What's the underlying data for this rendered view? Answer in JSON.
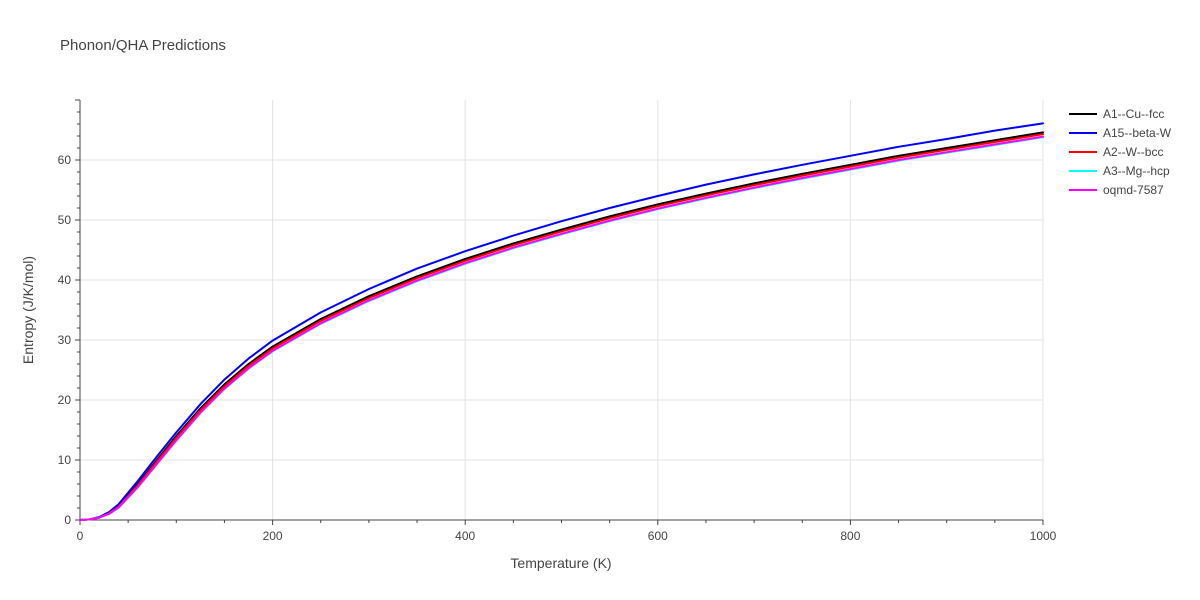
{
  "chart_data": {
    "type": "line",
    "title": "Phonon/QHA Predictions",
    "xlabel": "Temperature (K)",
    "ylabel": "Entropy (J/K/mol)",
    "xlim": [
      0,
      1000
    ],
    "ylim": [
      0,
      70
    ],
    "xticks": [
      0,
      200,
      400,
      600,
      800,
      1000
    ],
    "yticks": [
      0,
      10,
      20,
      30,
      40,
      50,
      60
    ],
    "grid": true,
    "legend_position": "right",
    "series": [
      {
        "name": "A1--Cu--fcc",
        "color": "#000000",
        "x": [
          0,
          10,
          20,
          30,
          40,
          60,
          80,
          100,
          125,
          150,
          175,
          200,
          250,
          300,
          350,
          400,
          450,
          500,
          550,
          600,
          650,
          700,
          750,
          800,
          850,
          900,
          950,
          1000
        ],
        "y": [
          0,
          0.1,
          0.4,
          1.2,
          2.4,
          6.0,
          10.0,
          14.0,
          18.6,
          22.6,
          26.0,
          28.9,
          33.5,
          37.3,
          40.6,
          43.5,
          46.1,
          48.4,
          50.6,
          52.6,
          54.4,
          56.1,
          57.7,
          59.2,
          60.7,
          62.0,
          63.3,
          64.6
        ]
      },
      {
        "name": "A15--beta-W",
        "color": "#0000ff",
        "x": [
          0,
          10,
          20,
          30,
          40,
          60,
          80,
          100,
          125,
          150,
          175,
          200,
          250,
          300,
          350,
          400,
          450,
          500,
          550,
          600,
          650,
          700,
          750,
          800,
          850,
          900,
          950,
          1000
        ],
        "y": [
          0,
          0.1,
          0.5,
          1.3,
          2.6,
          6.5,
          10.6,
          14.6,
          19.3,
          23.4,
          26.9,
          29.9,
          34.6,
          38.5,
          41.9,
          44.8,
          47.4,
          49.8,
          52.0,
          54.0,
          55.9,
          57.6,
          59.2,
          60.7,
          62.2,
          63.5,
          64.9,
          66.1
        ]
      },
      {
        "name": "A2--W--bcc",
        "color": "#ff0000",
        "x": [
          0,
          10,
          20,
          30,
          40,
          60,
          80,
          100,
          125,
          150,
          175,
          200,
          250,
          300,
          350,
          400,
          450,
          500,
          550,
          600,
          650,
          700,
          750,
          800,
          850,
          900,
          950,
          1000
        ],
        "y": [
          0,
          0.1,
          0.4,
          1.1,
          2.2,
          5.8,
          9.8,
          13.7,
          18.3,
          22.3,
          25.7,
          28.6,
          33.2,
          37.0,
          40.3,
          43.2,
          45.8,
          48.1,
          50.3,
          52.3,
          54.1,
          55.8,
          57.4,
          58.9,
          60.4,
          61.7,
          63.0,
          64.3
        ]
      },
      {
        "name": "A3--Mg--hcp",
        "color": "#00ffff",
        "x": [
          0,
          10,
          20,
          30,
          40,
          60,
          80,
          100,
          125,
          150,
          175,
          200,
          250,
          300,
          350,
          400,
          450,
          500,
          550,
          600,
          650,
          700,
          750,
          800,
          850,
          900,
          950,
          1000
        ],
        "y": [
          0,
          0.1,
          0.4,
          1.0,
          2.0,
          5.4,
          9.3,
          13.2,
          17.8,
          21.8,
          25.2,
          28.1,
          32.7,
          36.5,
          39.8,
          42.7,
          45.3,
          47.6,
          49.8,
          51.8,
          53.6,
          55.3,
          56.9,
          58.4,
          59.9,
          61.2,
          62.5,
          63.8
        ]
      },
      {
        "name": "oqmd-7587",
        "color": "#ff00ff",
        "x": [
          0,
          10,
          20,
          30,
          40,
          60,
          80,
          100,
          125,
          150,
          175,
          200,
          250,
          300,
          350,
          400,
          450,
          500,
          550,
          600,
          650,
          700,
          750,
          800,
          850,
          900,
          950,
          1000
        ],
        "y": [
          0,
          0.1,
          0.4,
          1.0,
          2.1,
          5.5,
          9.4,
          13.3,
          17.9,
          21.9,
          25.3,
          28.2,
          32.8,
          36.6,
          39.9,
          42.8,
          45.4,
          47.7,
          49.9,
          51.9,
          53.7,
          55.4,
          57.0,
          58.5,
          60.0,
          61.3,
          62.6,
          63.9
        ]
      }
    ]
  }
}
